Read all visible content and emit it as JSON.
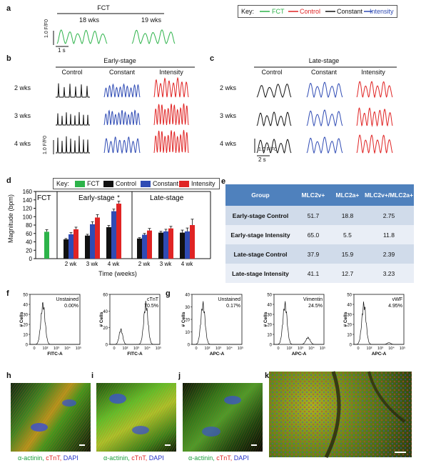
{
  "panels": {
    "a": "a",
    "b": "b",
    "c": "c",
    "d": "d",
    "e": "e",
    "f": "f",
    "g": "g",
    "h": "h",
    "i": "i",
    "j": "j",
    "k": "k"
  },
  "colors": {
    "fct": "#2db34a",
    "control": "#e02424",
    "constant": "#111111",
    "intensity": "#2f4bb4",
    "red": "#e02424"
  },
  "panel_a": {
    "title": "FCT",
    "groups": [
      "18 wks",
      "19 wks"
    ],
    "yscale": "1.0 F/F0",
    "xscale": "1 s"
  },
  "key_top": {
    "title": "Key:",
    "items": [
      "FCT",
      "Control",
      "Constant",
      "Intensity"
    ]
  },
  "panel_b": {
    "title": "Early-stage",
    "columns": [
      "Control",
      "Constant",
      "Intensity"
    ],
    "rows": [
      "2 wks",
      "3 wks",
      "4 wks"
    ],
    "yscale": "1.0 F/F0"
  },
  "panel_c": {
    "title": "Late-stage",
    "columns": [
      "Control",
      "Constant",
      "Intensity"
    ],
    "rows": [
      "2 wks",
      "3 wks",
      "4 wks"
    ],
    "yscale": "1.0 F/F0",
    "xscale": "2 s"
  },
  "chart_data": {
    "type": "bar",
    "legend": {
      "title": "Key:",
      "items": [
        "FCT",
        "Control",
        "Constant",
        "Intensity"
      ]
    },
    "section_labels": [
      "FCT",
      "Early-stage",
      "Late-stage"
    ],
    "ylabel": "Magnitude (bpm)",
    "xlabel": "Time (weeks)",
    "ylim": [
      0,
      160
    ],
    "yticks": [
      0,
      20,
      40,
      60,
      80,
      100,
      120,
      140,
      160
    ],
    "fct": {
      "name": "FCT",
      "value": 64,
      "err": 5
    },
    "groups": [
      {
        "category": "2 wk",
        "stage": "Early",
        "values": [
          46,
          58,
          70
        ],
        "err": [
          2,
          4,
          5
        ]
      },
      {
        "category": "3 wk",
        "stage": "Early",
        "values": [
          55,
          82,
          98
        ],
        "err": [
          3,
          6,
          7
        ]
      },
      {
        "category": "4 wk",
        "stage": "Early",
        "values": [
          75,
          113,
          131
        ],
        "err": [
          4,
          5,
          6
        ],
        "star": "*"
      },
      {
        "category": "2 wk",
        "stage": "Late",
        "values": [
          48,
          57,
          67
        ],
        "err": [
          2,
          3,
          5
        ]
      },
      {
        "category": "3 wk",
        "stage": "Late",
        "values": [
          62,
          65,
          72
        ],
        "err": [
          3,
          5,
          5
        ]
      },
      {
        "category": "4 wk",
        "stage": "Late",
        "values": [
          62,
          65,
          80
        ],
        "err": [
          6,
          8,
          14
        ]
      }
    ],
    "series_colors": [
      "#111111",
      "#2f4bb4",
      "#e02424"
    ]
  },
  "table_e": {
    "headers": [
      "Group",
      "MLC2v+",
      "MLC2a+",
      "MLC2v+/MLC2a+"
    ],
    "rows": [
      [
        "Early-stage Control",
        "51.7",
        "18.8",
        "2.75"
      ],
      [
        "Early-stage Intensity",
        "65.0",
        "5.5",
        "11.8"
      ],
      [
        "Late-stage Control",
        "37.9",
        "15.9",
        "2.39"
      ],
      [
        "Late-stage Intensity",
        "41.1",
        "12.7",
        "3.23"
      ]
    ]
  },
  "flow": {
    "ylabel": "# Cells",
    "f": [
      {
        "label": "Unstained",
        "percent": "0.00%",
        "xlabel": "FITC-A",
        "yticks": [
          "0",
          "10",
          "20",
          "30",
          "40",
          "50"
        ]
      },
      {
        "label": "cTnT",
        "percent": "70.5%",
        "xlabel": "FITC-A",
        "yticks": [
          "0",
          "20",
          "40",
          "60"
        ]
      }
    ],
    "g": [
      {
        "label": "Unstained",
        "percent": "0.17%",
        "xlabel": "APC-A",
        "yticks": [
          "0",
          "10",
          "20",
          "30",
          "40"
        ]
      },
      {
        "label": "Vimentin",
        "percent": "24.5%",
        "xlabel": "APC-A",
        "yticks": [
          "0",
          "10",
          "20",
          "30",
          "40",
          "50"
        ]
      },
      {
        "label": "vWF",
        "percent": "4.95%",
        "xlabel": "APC-A",
        "yticks": [
          "0",
          "10",
          "20",
          "30",
          "40",
          "50"
        ]
      }
    ],
    "xticks": [
      "0",
      "10²",
      "10³",
      "10⁴",
      "10⁵"
    ]
  },
  "micro_caption": {
    "a": "α-actinin,",
    "b": "cTnT,",
    "c": "DAPI"
  }
}
